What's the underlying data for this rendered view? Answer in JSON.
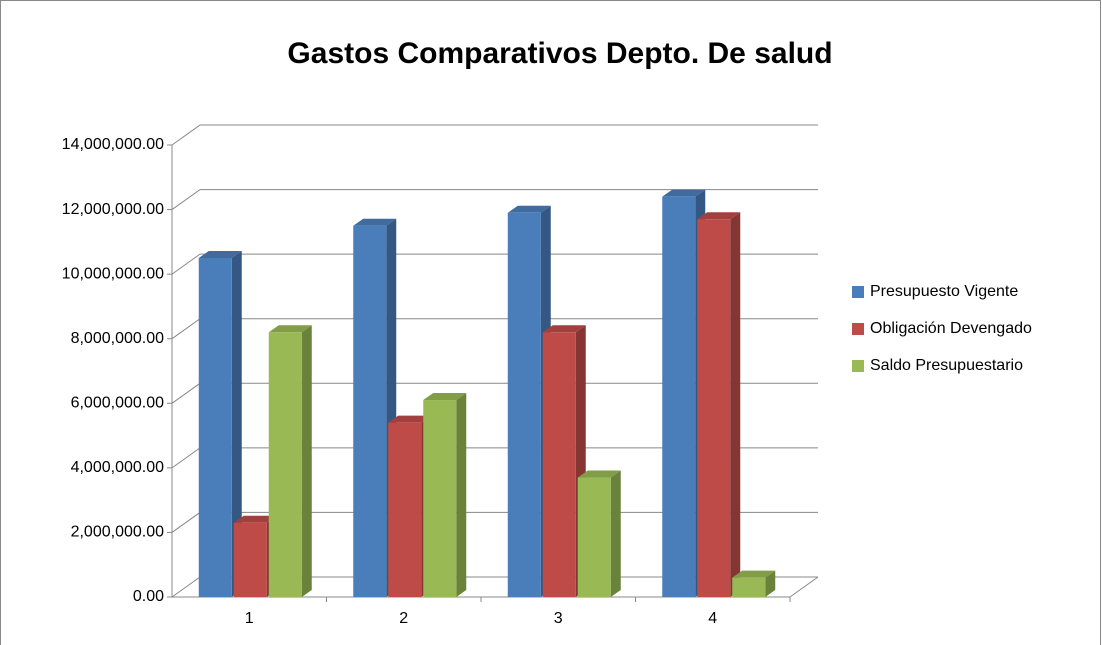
{
  "chart_data": {
    "type": "bar3d",
    "title": "Gastos Comparativos Depto. De salud",
    "categories": [
      "1",
      "2",
      "3",
      "4"
    ],
    "series": [
      {
        "name": "Presupuesto Vigente",
        "color": "#4a7ebb",
        "values": [
          10500000,
          11500000,
          11900000,
          12400000
        ]
      },
      {
        "name": "Obligación Devengado",
        "color": "#be4b48",
        "values": [
          2300000,
          5400000,
          8200000,
          11700000
        ]
      },
      {
        "name": "Saldo Presupuestario",
        "color": "#98b954",
        "values": [
          8200000,
          6100000,
          3700000,
          600000
        ]
      }
    ],
    "ylim": [
      0,
      14000000
    ],
    "yticks": [
      {
        "value": 0,
        "label": "0.00"
      },
      {
        "value": 2000000,
        "label": "2,000,000.00"
      },
      {
        "value": 4000000,
        "label": "4,000,000.00"
      },
      {
        "value": 6000000,
        "label": "6,000,000.00"
      },
      {
        "value": 8000000,
        "label": "8,000,000.00"
      },
      {
        "value": 10000000,
        "label": "10,000,000.00"
      },
      {
        "value": 12000000,
        "label": "12,000,000.00"
      },
      {
        "value": 14000000,
        "label": "14,000,000.00"
      }
    ],
    "grid": true,
    "legend": "right"
  }
}
